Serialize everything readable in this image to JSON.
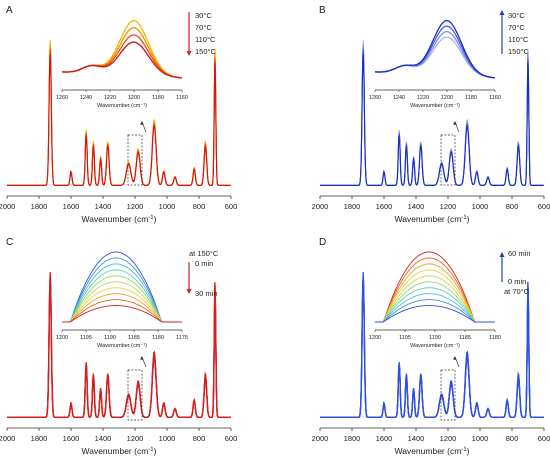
{
  "figure": {
    "panels": [
      {
        "label": "A",
        "x_axis": {
          "ticks": [
            "2000",
            "1800",
            "1600",
            "1400",
            "1200",
            "1000",
            "800",
            "600"
          ],
          "label": "Wavenumber (cm",
          "label_sup": "-1",
          "label_end": ")"
        },
        "inset": {
          "ticks": [
            "1260",
            "1240",
            "1220",
            "1200",
            "1180",
            "1160"
          ],
          "label": "Wavenumber (cm⁻¹)"
        },
        "legend": {
          "entries": [
            "30°C",
            "70°C",
            "110°C",
            "150°C"
          ],
          "arrow": "down",
          "arrow_color": "#d42020"
        },
        "colors": [
          "#f5b800",
          "#f29000",
          "#e84c10",
          "#d21414"
        ]
      },
      {
        "label": "B",
        "x_axis": {
          "ticks": [
            "2000",
            "1800",
            "1600",
            "1400",
            "1200",
            "1000",
            "800",
            "600"
          ],
          "label": "Wavenumber (cm",
          "label_sup": "-1",
          "label_end": ")"
        },
        "inset": {
          "ticks": [
            "1260",
            "1240",
            "1220",
            "1200",
            "1180",
            "1160"
          ],
          "label": "Wavenumber (cm⁻¹)"
        },
        "legend": {
          "entries": [
            "30°C",
            "70°C",
            "110°C",
            "150°C"
          ],
          "arrow": "up",
          "arrow_color": "#1a3fc4"
        },
        "colors": [
          "#a8b4f0",
          "#7e8fe8",
          "#4a5fd8",
          "#1a2fc0"
        ]
      },
      {
        "label": "C",
        "x_axis": {
          "ticks": [
            "2000",
            "1800",
            "1600",
            "1400",
            "1200",
            "1000",
            "800",
            "600"
          ],
          "label": "Wavenumber (cm",
          "label_sup": "-1",
          "label_end": ")"
        },
        "inset": {
          "ticks": [
            "1200",
            "1195",
            "1190",
            "1185",
            "1180",
            "1175"
          ],
          "label": "Wavenumber (cm⁻¹)"
        },
        "legend": {
          "entries": [
            "at 150°C",
            "0 min",
            "30 min"
          ],
          "arrow": "down",
          "arrow_color": "#d42020"
        },
        "colors": [
          "#3050e0",
          "#4a90e8",
          "#4cc0e0",
          "#60d0b0",
          "#90d870",
          "#c8d850",
          "#f0d040",
          "#f0a030",
          "#e86a20",
          "#d42020"
        ]
      },
      {
        "label": "D",
        "x_axis": {
          "ticks": [
            "2000",
            "1800",
            "1600",
            "1400",
            "1200",
            "1000",
            "800",
            "600"
          ],
          "label": "Wavenumber (cm",
          "label_sup": "-1",
          "label_end": ")"
        },
        "inset": {
          "ticks": [
            "1200",
            "1195",
            "1190",
            "1185",
            "1180"
          ],
          "label": "Wavenumber (cm⁻¹)"
        },
        "legend": {
          "entries": [
            "60 min",
            "0 min",
            "at 70°C"
          ],
          "arrow": "up",
          "arrow_color": "#1a3fc4"
        },
        "colors": [
          "#d42020",
          "#e86a20",
          "#f0a030",
          "#f0d040",
          "#c8d850",
          "#90d870",
          "#60d0b0",
          "#4cc0e0",
          "#4a90e8",
          "#3050e0"
        ]
      }
    ]
  },
  "chart_data": [
    {
      "type": "line",
      "panel": "A",
      "xlabel": "Wavenumber (cm-1)",
      "xlim": [
        2000,
        600
      ],
      "x_reversed": true,
      "peaks_cm-1": [
        1730,
        1600,
        1500,
        1460,
        1415,
        1370,
        1240,
        1180,
        1080,
        1020,
        830,
        760,
        700
      ],
      "series_legend": [
        "30°C",
        "70°C",
        "110°C",
        "150°C"
      ],
      "inset": {
        "xlim": [
          1265,
          1155
        ],
        "peak_center": 1190,
        "relative_heights": [
          1.0,
          0.9,
          0.75,
          0.6
        ]
      }
    },
    {
      "type": "line",
      "panel": "B",
      "xlabel": "Wavenumber (cm-1)",
      "xlim": [
        2000,
        600
      ],
      "x_reversed": true,
      "series_legend": [
        "30°C",
        "70°C",
        "110°C",
        "150°C"
      ],
      "inset": {
        "xlim": [
          1265,
          1155
        ],
        "peak_center": 1190,
        "relative_heights": [
          0.7,
          0.8,
          0.9,
          1.0
        ]
      }
    },
    {
      "type": "line",
      "panel": "C",
      "xlabel": "Wavenumber (cm-1)",
      "xlim": [
        2000,
        600
      ],
      "x_reversed": true,
      "inset": {
        "xlim": [
          1201,
          1174
        ],
        "peak_center": 1188,
        "time_series_min": [
          0,
          30
        ]
      }
    },
    {
      "type": "line",
      "panel": "D",
      "xlabel": "Wavenumber (cm-1)",
      "xlim": [
        2000,
        600
      ],
      "x_reversed": true,
      "inset": {
        "xlim": [
          1201,
          1179
        ],
        "peak_center": 1190,
        "time_series_min": [
          0,
          60
        ]
      }
    }
  ]
}
